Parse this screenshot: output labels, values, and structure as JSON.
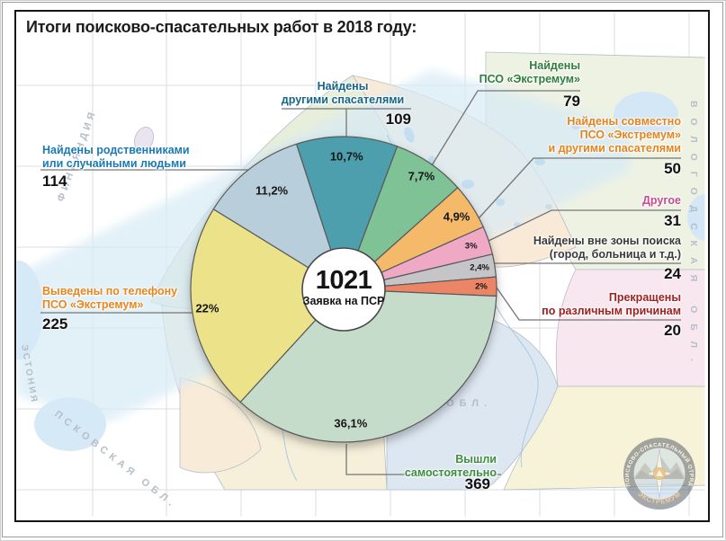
{
  "title": "Итоги поисково-спасательных работ в 2018 году:",
  "chart_data": {
    "type": "pie",
    "title": "Итоги поисково-спасательных работ в 2018 году",
    "total": "1021",
    "total_caption": "Заявка на ПСР",
    "start_angle_deg": -18,
    "legend_position": "callouts-around-pie",
    "segments": [
      {
        "name": "found_by_other_rescuers",
        "label": "Найдены другими спасателями",
        "lines": [
          "Найдены",
          "другими спасателями"
        ],
        "value": 109,
        "pct": 10.7,
        "pct_label": "10,7%",
        "color": "#4E9FAE",
        "label_color": "#15658A"
      },
      {
        "name": "found_by_pso_extremum",
        "label": "Найдены ПСО «Экстремум»",
        "lines": [
          "Найдены",
          "ПСО «Экстремум»"
        ],
        "value": 79,
        "pct": 7.7,
        "pct_label": "7,7%",
        "color": "#7FC295",
        "label_color": "#2F7D3B"
      },
      {
        "name": "found_jointly",
        "label": "Найдены совместно ПСО «Экстремум» и другими спасателями",
        "lines": [
          "Найдены совместно",
          "ПСО «Экстремум»",
          "и другими спасателями"
        ],
        "value": 50,
        "pct": 4.9,
        "pct_label": "4,9%",
        "color": "#F4BA6B",
        "label_color": "#E5831C"
      },
      {
        "name": "other",
        "label": "Другое",
        "lines": [
          "Другое"
        ],
        "value": 31,
        "pct": 3.0,
        "pct_label": "3%",
        "color": "#F0A9C4",
        "label_color": "#C84B8E"
      },
      {
        "name": "found_outside_search_zone",
        "label": "Найдены вне зоны поиска (город, больница и т.д.)",
        "lines": [
          "Найдены вне зоны поиска",
          "(город, больница и т.д.)"
        ],
        "value": 24,
        "pct": 2.4,
        "pct_label": "2,4%",
        "color": "#C5C5C7",
        "label_color": "#3A3A3A"
      },
      {
        "name": "terminated_various_reasons",
        "label": "Прекращены по различным причинам",
        "lines": [
          "Прекращены",
          "по различным причинам"
        ],
        "value": 20,
        "pct": 2.0,
        "pct_label": "2%",
        "color": "#EB8565",
        "label_color": "#A02020"
      },
      {
        "name": "exited_on_their_own",
        "label": "Вышли самостоятельно",
        "lines": [
          "Вышли самостоятельно"
        ],
        "value": 369,
        "pct": 36.1,
        "pct_label": "36,1%",
        "color": "#C6DCCA",
        "label_color": "#3B8F3F"
      },
      {
        "name": "guided_out_by_phone",
        "label": "Выведены по телефону ПСО «Экстремум»",
        "lines": [
          "Выведены по телефону",
          "ПСО «Экстремум»"
        ],
        "value": 225,
        "pct": 22.0,
        "pct_label": "22%",
        "color": "#EBE289",
        "label_color": "#E8861C"
      },
      {
        "name": "found_by_relatives",
        "label": "Найдены родственниками или случайными людьми",
        "lines": [
          "Найдены родственниками",
          "или случайными людьми"
        ],
        "value": 114,
        "pct": 11.2,
        "pct_label": "11,2%",
        "color": "#B9CEDB",
        "label_color": "#1A7AB3"
      }
    ]
  },
  "map": {
    "region_labels": [
      "ФИНЛЯНДИЯ",
      "ЭСТОНИЯ",
      "ПСКОВСКАЯ ОБЛ.",
      "НОВГОРОДСКАЯ ОБЛ.",
      "ВОЛОГОДСКАЯ ОБЛ."
    ]
  },
  "logo": {
    "arc_text": "ПОИСКОВО-СПАСАТЕЛЬНЫЙ ОТРЯД",
    "bottom_text": "ЭКСТРЕМУМ"
  }
}
